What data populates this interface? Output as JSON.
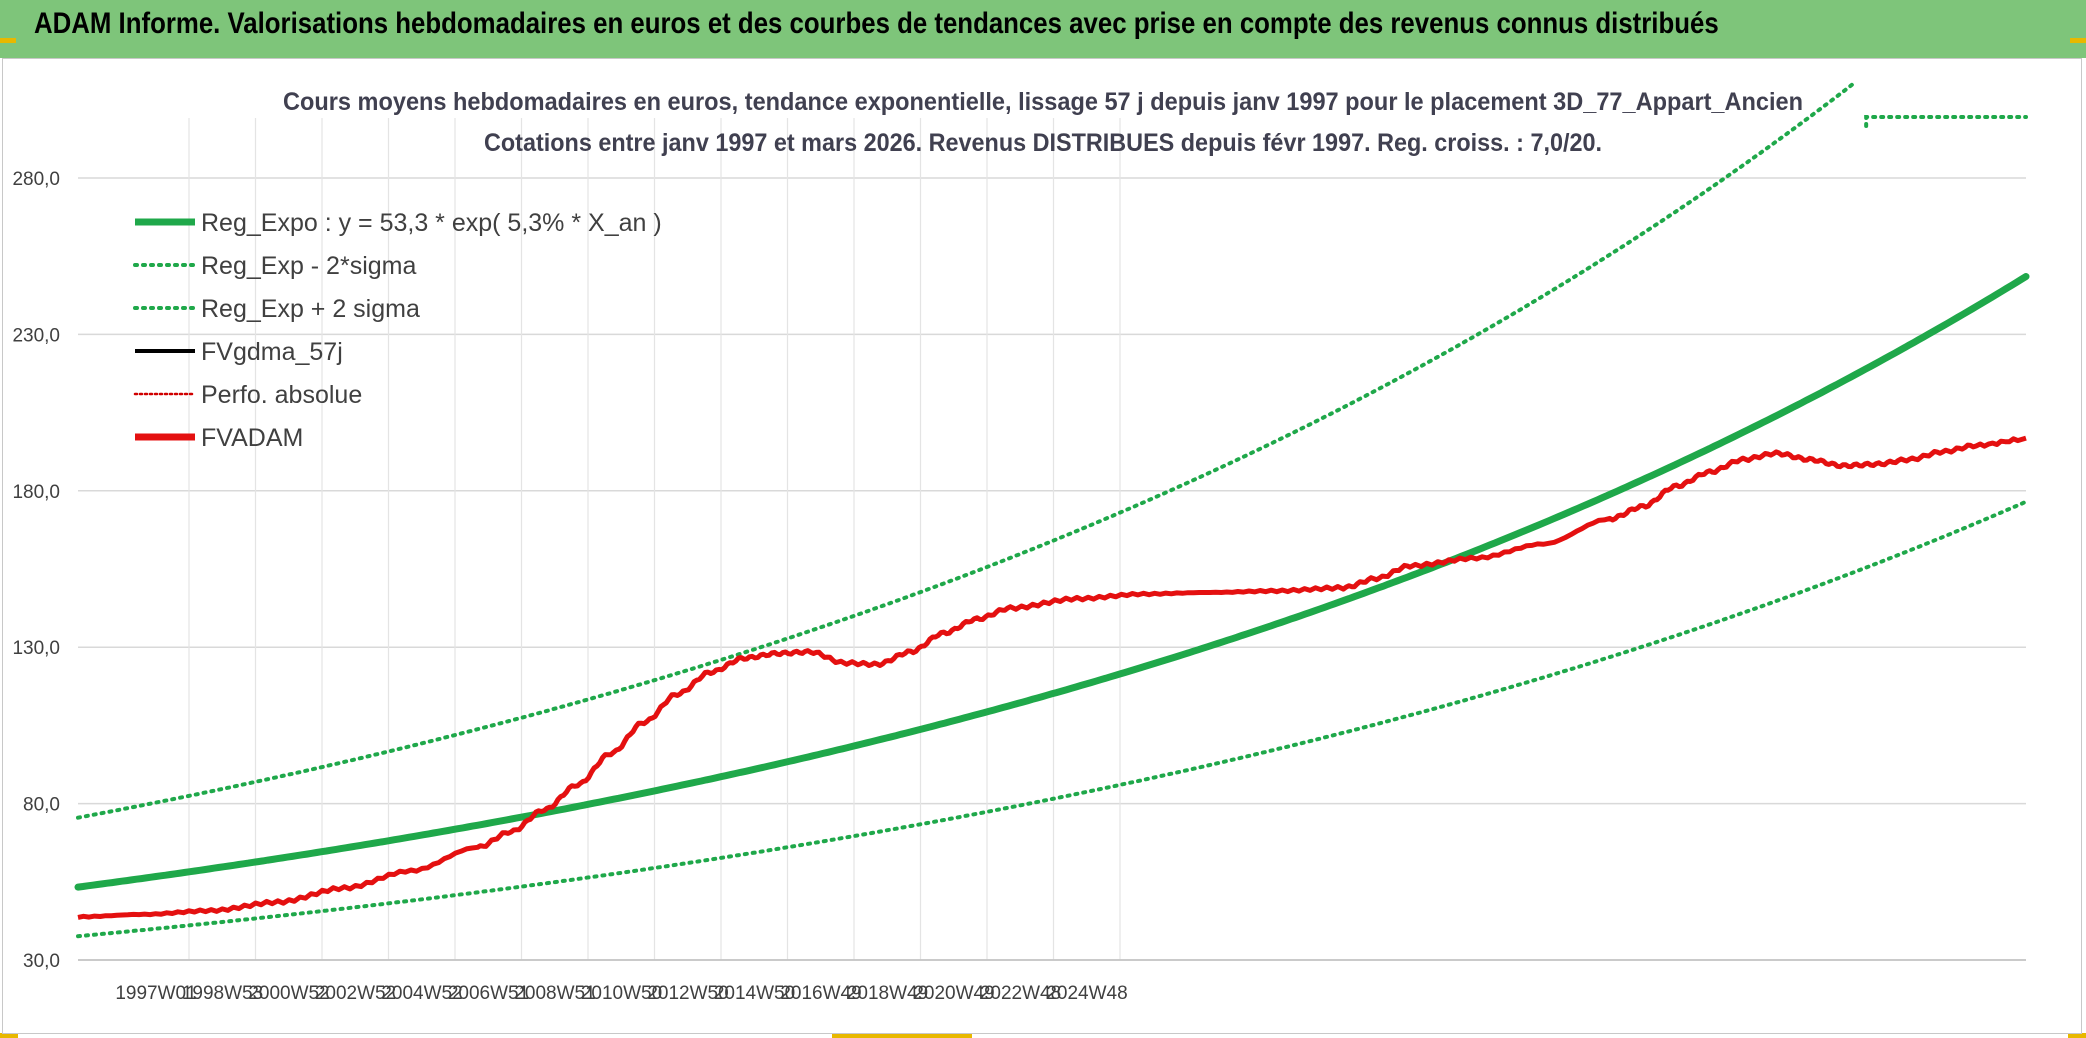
{
  "header": {
    "title": "ADAM Informe. Valorisations hebdomadaires en euros et des courbes de tendances avec prise en compte des revenus connus distribués"
  },
  "colors": {
    "banner": "#7ec57a",
    "reg_expo": "#1fa84a",
    "reg_sigma": "#1fa84a",
    "fvgdma": "#000000",
    "perfo": "#d00000",
    "fvadam": "#e41010",
    "grid": "#d9d9d9"
  },
  "chart_data": {
    "type": "line",
    "title": "Cours moyens hebdomadaires en euros, tendance exponentielle, lissage 57 j depuis janv 1997 pour le placement 3D_77_Appart_Ancien",
    "subtitle": "Cotations entre janv 1997 et mars 2026. Revenus DISTRIBUES depuis févr 1997. Reg. croiss. : 7,0/20.",
    "ylim": [
      30,
      280
    ],
    "y_ticks": [
      "30,0",
      "80,0",
      "130,0",
      "180,0",
      "230,0",
      "280,0"
    ],
    "y_tick_values": [
      30,
      80,
      130,
      180,
      230,
      280
    ],
    "x_range": [
      "1997W01",
      "2026W13"
    ],
    "x_tick_labels": [
      "1997W01",
      "1998W53",
      "2000W52",
      "2002W52",
      "2004W52",
      "2006W51",
      "2008W51",
      "2010W50",
      "2012W50",
      "2014W50",
      "2016W49",
      "2018W49",
      "2020W49",
      "2022W48",
      "2024W48"
    ],
    "grid": true,
    "legend_position": "top-left",
    "legend": [
      {
        "key": "reg_expo",
        "label": "Reg_Expo : y = 53,3 * exp( 5,3% *  X_an )",
        "style": "solid-thick"
      },
      {
        "key": "reg_minus",
        "label": "Reg_Exp - 2*sigma",
        "style": "dotted"
      },
      {
        "key": "reg_plus",
        "label": "Reg_Exp + 2 sigma",
        "style": "dotted"
      },
      {
        "key": "fvgdma",
        "label": "FVgdma_57j",
        "style": "solid"
      },
      {
        "key": "perfo",
        "label": "Perfo. absolue",
        "style": "dotted"
      },
      {
        "key": "fvadam",
        "label": "FVADAM",
        "style": "solid-thick"
      }
    ],
    "series": [
      {
        "name": "Reg_Expo : y = 53,3 * exp( 5,3% *  X_an )",
        "x": [
          1997.0,
          2001.0,
          2005.0,
          2009.0,
          2013.0,
          2017.0,
          2021.0,
          2026.25
        ],
        "y": [
          53.3,
          65.9,
          82.2,
          101.5,
          125.6,
          155.8,
          192.0,
          248.5
        ]
      },
      {
        "name": "Reg_Exp - 2*sigma",
        "x": [
          1997.0,
          2001.0,
          2005.0,
          2009.0,
          2013.0,
          2017.0,
          2021.0,
          2026.25
        ],
        "y": [
          37.6,
          46.4,
          57.7,
          71.8,
          88.8,
          110.0,
          136.0,
          176.5
        ]
      },
      {
        "name": "Reg_Exp + 2 sigma",
        "x": [
          1997.0,
          2001.0,
          2005.0,
          2009.0,
          2013.0,
          2017.0,
          2021.0,
          2023.7
        ],
        "y": [
          75.5,
          93.4,
          116.0,
          143.5,
          177.5,
          219.5,
          271.8,
          310.0
        ],
        "clip_value": 300.0
      },
      {
        "name": "FVADAM",
        "x": [
          1997.0,
          1998.0,
          1999.0,
          2000.0,
          2001.0,
          2002.0,
          2003.0,
          2003.5,
          2004.0,
          2004.5,
          2005.0,
          2005.5,
          2006.0,
          2006.5,
          2007.0,
          2007.5,
          2008.0,
          2008.5,
          2009.0,
          2009.5,
          2010.0,
          2010.5,
          2011.0,
          2012.0,
          2013.0,
          2014.0,
          2015.0,
          2016.0,
          2016.5,
          2017.0,
          2018.0,
          2019.0,
          2020.0,
          2020.5,
          2021.0,
          2021.5,
          2022.0,
          2022.5,
          2023.0,
          2023.5,
          2024.0,
          2024.5,
          2025.0,
          2025.5,
          2026.25
        ],
        "y": [
          43.8,
          44.6,
          45.8,
          48.5,
          53.0,
          58.5,
          66.0,
          71.0,
          78.0,
          86.0,
          96.0,
          106.0,
          115.0,
          122.0,
          126.5,
          128.0,
          128.5,
          125.0,
          124.5,
          128.5,
          134.5,
          139.0,
          142.5,
          145.5,
          147.0,
          147.5,
          148.0,
          149.0,
          152.0,
          156.0,
          158.5,
          163.0,
          171.0,
          175.0,
          181.5,
          186.0,
          190.0,
          192.0,
          190.0,
          188.0,
          188.5,
          190.0,
          192.5,
          194.5,
          196.5
        ]
      }
    ]
  }
}
